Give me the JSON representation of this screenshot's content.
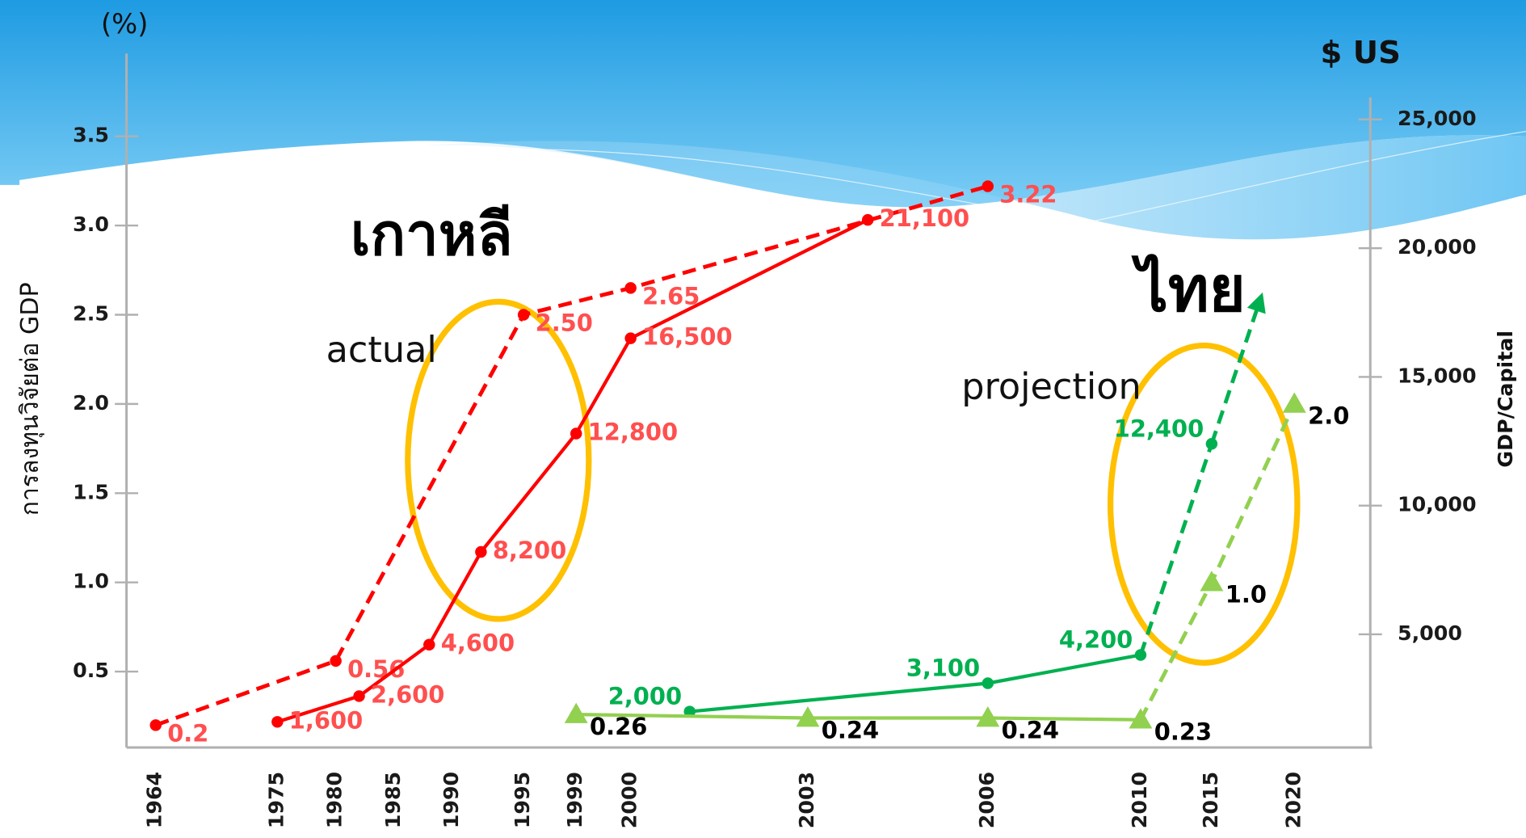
{
  "chart_data": {
    "type": "line",
    "y_unit_label": "(%)",
    "y_title": "การลงทุนวิจัยต่อ GDP",
    "y2_unit_label": "$ US",
    "y2_title": "GDP/Capital",
    "annotations": [
      "เกาหลี",
      "actual",
      "ไทย",
      "projection"
    ],
    "xticks": [
      1964,
      1975,
      1980,
      1985,
      1990,
      1995,
      1999,
      2000,
      2003,
      2006,
      2010,
      2015,
      2020
    ],
    "ylim": [
      0,
      4
    ],
    "yticks": [
      0.5,
      {
        "value": 1,
        "label": "1.0"
      },
      1.5,
      {
        "value": 2,
        "label": "2.0"
      },
      2.5,
      {
        "value": 3,
        "label": "3.0"
      },
      3.5
    ],
    "y2lim": [
      0,
      26000
    ],
    "y2ticks": [
      {
        "value": 5000,
        "label": "5,000"
      },
      {
        "value": 10000,
        "label": "10,000"
      },
      {
        "value": 15000,
        "label": "15,000"
      },
      {
        "value": 20000,
        "label": "20,000"
      },
      {
        "value": 25000,
        "label": "25,000"
      }
    ],
    "grid": false,
    "series": [
      {
        "color": "#ff0000",
        "label_color": "#ff4f4f",
        "marker": "circle",
        "dashed": true,
        "x": [
          1964,
          1980,
          1995,
          2000,
          2006
        ],
        "values": [
          0.2,
          0.56,
          2.5,
          2.65,
          3.22
        ],
        "value_labels": [
          "0.2",
          "0.56",
          "2.50",
          "2.65",
          "3.22"
        ]
      },
      {
        "color": "#ff0000",
        "label_color": "#ff4f4f",
        "marker": "circle",
        "axis": "y2",
        "x": [
          1975,
          1982,
          1988,
          1992,
          1999,
          2000,
          2004
        ],
        "values": [
          1600,
          2600,
          4600,
          8200,
          12800,
          16500,
          21100
        ],
        "value_labels": [
          "1,600",
          "2,600",
          "4,600",
          "8,200",
          "12,800",
          "16,500",
          "21,100"
        ]
      },
      {
        "color": "#00b050",
        "label_color": "#00b050",
        "marker": "circle",
        "axis": "y2",
        "dashed_from_x": 2010,
        "arrow": true,
        "x": [
          2001,
          2006,
          2010,
          2015
        ],
        "values": [
          2000,
          3100,
          4200,
          12400
        ],
        "value_labels": [
          "2,000",
          "3,100",
          "4,200",
          "12,400"
        ]
      },
      {
        "color": "#92d050",
        "label_color": "#000000",
        "marker": "triangle",
        "dashed_from_x": 2010,
        "x": [
          1999,
          2003,
          2006,
          2010,
          2015,
          2020
        ],
        "values": [
          0.26,
          0.24,
          0.24,
          0.23,
          1,
          2
        ],
        "value_labels": [
          "0.26",
          "0.24",
          "0.24",
          "0.23",
          "1.0",
          "2.0"
        ]
      }
    ]
  }
}
